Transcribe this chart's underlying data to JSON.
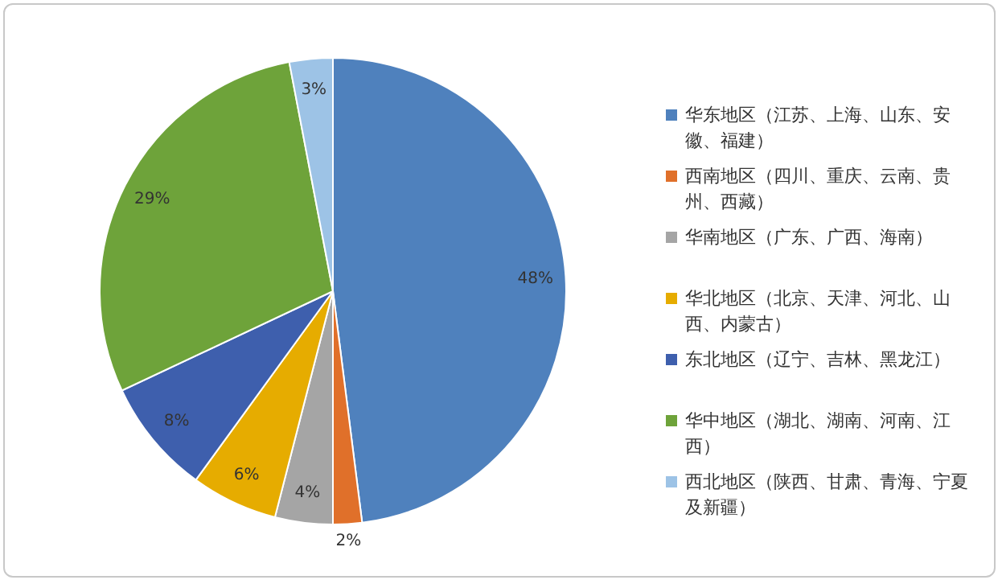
{
  "chart_data": {
    "type": "pie",
    "categories": [
      "华东地区（江苏、上海、山东、安徽、福建）",
      "西南地区（四川、重庆、云南、贵州、西藏）",
      "华南地区（广东、广西、海南）",
      "华北地区（北京、天津、河北、山西、内蒙古）",
      "东北地区（辽宁、吉林、黑龙江）",
      "华中地区（湖北、湖南、河南、江西）",
      "西北地区（陕西、甘肃、青海、宁夏及新疆）"
    ],
    "values": [
      48,
      2,
      4,
      6,
      8,
      29,
      3
    ],
    "colors": [
      "#4f81bd",
      "#e0702a",
      "#a5a5a5",
      "#e6ac00",
      "#3e5fad",
      "#6ea33a",
      "#9dc3e6"
    ],
    "value_labels": [
      "48%",
      "2%",
      "4%",
      "6%",
      "8%",
      "29%",
      "3%"
    ],
    "legend": "right"
  }
}
